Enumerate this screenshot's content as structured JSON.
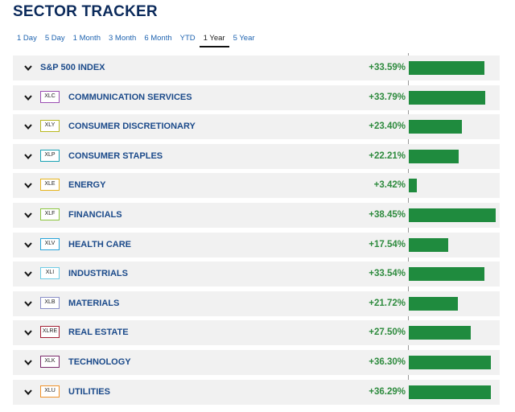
{
  "title": "SECTOR TRACKER",
  "tabs": [
    {
      "label": "1 Day",
      "active": false
    },
    {
      "label": "5 Day",
      "active": false
    },
    {
      "label": "1 Month",
      "active": false
    },
    {
      "label": "3 Month",
      "active": false
    },
    {
      "label": "6 Month",
      "active": false
    },
    {
      "label": "YTD",
      "active": false
    },
    {
      "label": "1 Year",
      "active": true
    },
    {
      "label": "5 Year",
      "active": false
    }
  ],
  "bar_scale_max_pct": 40,
  "bar_color": "#1f8b3e",
  "positive_color": "#2e8b3e",
  "rows": [
    {
      "ticker": "",
      "name": "S&P 500 INDEX",
      "change": "+33.59%",
      "value": 33.59,
      "ticker_color": ""
    },
    {
      "ticker": "XLC",
      "name": "COMMUNICATION SERVICES",
      "change": "+33.79%",
      "value": 33.79,
      "ticker_color": "#9b4fb3"
    },
    {
      "ticker": "XLY",
      "name": "CONSUMER DISCRETIONARY",
      "change": "+23.40%",
      "value": 23.4,
      "ticker_color": "#b8b820"
    },
    {
      "ticker": "XLP",
      "name": "CONSUMER STAPLES",
      "change": "+22.21%",
      "value": 22.21,
      "ticker_color": "#1aa3b5"
    },
    {
      "ticker": "XLE",
      "name": "ENERGY",
      "change": "+3.42%",
      "value": 3.42,
      "ticker_color": "#e7b41c"
    },
    {
      "ticker": "XLF",
      "name": "FINANCIALS",
      "change": "+38.45%",
      "value": 38.45,
      "ticker_color": "#8cc63f"
    },
    {
      "ticker": "XLV",
      "name": "HEALTH CARE",
      "change": "+17.54%",
      "value": 17.54,
      "ticker_color": "#27a3d9"
    },
    {
      "ticker": "XLI",
      "name": "INDUSTRIALS",
      "change": "+33.54%",
      "value": 33.54,
      "ticker_color": "#6ecbe5"
    },
    {
      "ticker": "XLB",
      "name": "MATERIALS",
      "change": "+21.72%",
      "value": 21.72,
      "ticker_color": "#8a8fc8"
    },
    {
      "ticker": "XLRE",
      "name": "REAL ESTATE",
      "change": "+27.50%",
      "value": 27.5,
      "ticker_color": "#a32035"
    },
    {
      "ticker": "XLK",
      "name": "TECHNOLOGY",
      "change": "+36.30%",
      "value": 36.3,
      "ticker_color": "#7a2a6b"
    },
    {
      "ticker": "XLU",
      "name": "UTILITIES",
      "change": "+36.29%",
      "value": 36.29,
      "ticker_color": "#f0912a"
    }
  ]
}
